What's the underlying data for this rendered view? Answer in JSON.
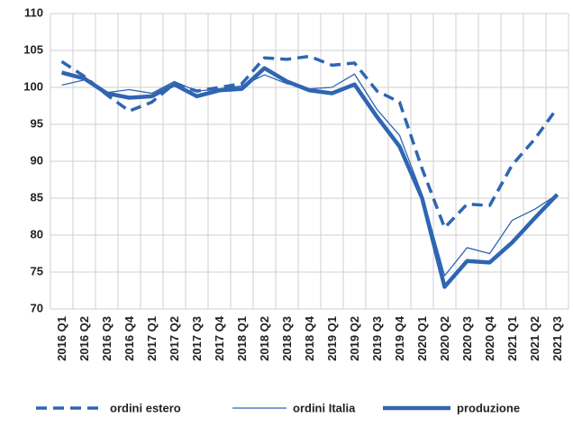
{
  "chart_data": {
    "type": "line",
    "categories": [
      "2016 Q1",
      "2016 Q2",
      "2016 Q3",
      "2016 Q4",
      "2017 Q1",
      "2017 Q2",
      "2017 Q3",
      "2017 Q4",
      "2018 Q1",
      "2018 Q2",
      "2018 Q3",
      "2018 Q4",
      "2019 Q1",
      "2019 Q2",
      "2019 Q3",
      "2019 Q4",
      "2020 Q1",
      "2020 Q2",
      "2020 Q3",
      "2020 Q4",
      "2021 Q1",
      "2021 Q2",
      "2021 Q3"
    ],
    "series": [
      {
        "name": "ordini estero",
        "color": "#2f65b3",
        "line_style": "dashed",
        "line_weight": "medium",
        "values": [
          103.5,
          101.5,
          99,
          96.8,
          98,
          100.5,
          99.5,
          100,
          100.5,
          104,
          103.8,
          104.2,
          103,
          103.3,
          99.5,
          98,
          89,
          81,
          84.2,
          84,
          89.5,
          93,
          97.2
        ]
      },
      {
        "name": "ordini Italia",
        "color": "#2f65b3",
        "line_style": "solid",
        "line_weight": "thin",
        "values": [
          100.3,
          101,
          99.3,
          99.7,
          99.2,
          100.8,
          99.5,
          99.8,
          100.2,
          101.7,
          100.5,
          99.8,
          100,
          101.8,
          97,
          93.5,
          85.5,
          74.5,
          78.3,
          77.5,
          82,
          83.5,
          85.5
        ]
      },
      {
        "name": "produzione",
        "color": "#2f65b3",
        "line_style": "solid",
        "line_weight": "thick",
        "values": [
          102,
          101.2,
          99.2,
          98.6,
          98.8,
          100.4,
          98.8,
          99.6,
          99.8,
          102.6,
          100.8,
          99.6,
          99.2,
          100.4,
          96,
          92,
          85,
          73,
          76.5,
          76.3,
          79,
          82.3,
          85.5
        ]
      }
    ],
    "ylim": [
      70,
      110
    ],
    "yticks": [
      70,
      75,
      80,
      85,
      90,
      95,
      100,
      105,
      110
    ],
    "grid": true,
    "legend": "bottom"
  }
}
